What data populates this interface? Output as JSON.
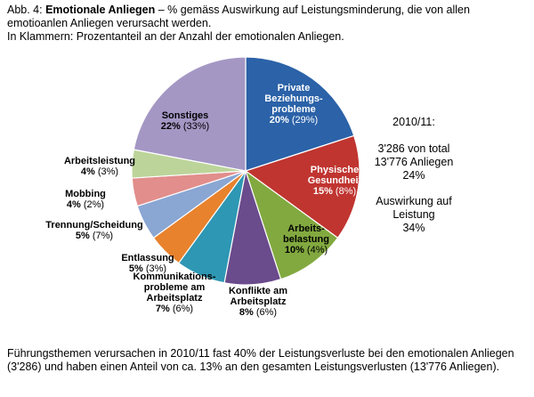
{
  "caption": {
    "prefix": "Abb. 4: ",
    "title_bold": "Emotionale Anliegen",
    "rest_line1": " – % gemäss Auswirkung auf Leistungsminderung, die von allen",
    "line2": "emotioanlen Anliegen verursacht werden.",
    "line3": "In Klammern: Prozentanteil an der Anzahl der emotionalen Anliegen."
  },
  "side_note": {
    "period": "2010/11:",
    "count_line1": "3'286 von total",
    "count_line2": "13'776 Anliegen",
    "count_pct": "24%",
    "impact_line1": "Auswirkung auf",
    "impact_line2": "Leistung",
    "impact_pct": "34%"
  },
  "footnote": {
    "line1": "Führungsthemen verursachen in 2010/11 fast 40% der Leistungsverluste bei den emotionalen Anliegen",
    "line2": "(3'286) und haben einen Anteil von ca. 13% an den gesamten Leistungsverlusten (13'776 Anliegen)."
  },
  "chart_data": {
    "type": "pie",
    "start_angle_deg": 0,
    "direction": "clockwise",
    "slices": [
      {
        "name_lines": [
          "Private",
          "Beziehungs-",
          "probleme"
        ],
        "value": 20,
        "value_label": "20%",
        "count_label": "(29%)",
        "color": "#2b62a8"
      },
      {
        "name_lines": [
          "Physische",
          "Gesundheit"
        ],
        "value": 15,
        "value_label": "15%",
        "count_label": "(8%)",
        "color": "#c03530"
      },
      {
        "name_lines": [
          "Arbeits-",
          "belastung"
        ],
        "value": 10,
        "value_label": "10%",
        "count_label": "(4%)",
        "color": "#82a93f"
      },
      {
        "name_lines": [
          "Konflikte am",
          "Arbeitsplatz"
        ],
        "value": 8,
        "value_label": "8%",
        "count_label": "(6%)",
        "color": "#6a4b8c"
      },
      {
        "name_lines": [
          "Kommunikations-",
          "probleme am",
          "Arbeitsplatz"
        ],
        "value": 7,
        "value_label": "7%",
        "count_label": "(6%)",
        "color": "#2e97b3"
      },
      {
        "name_lines": [
          "Entlassung"
        ],
        "value": 5,
        "value_label": "5%",
        "count_label": "(3%)",
        "color": "#e8822d"
      },
      {
        "name_lines": [
          "Trennung/Scheidung"
        ],
        "value": 5,
        "value_label": "5%",
        "count_label": "(7%)",
        "color": "#8aa6d3"
      },
      {
        "name_lines": [
          "Mobbing"
        ],
        "value": 4,
        "value_label": "4%",
        "count_label": "(2%)",
        "color": "#e18e8c"
      },
      {
        "name_lines": [
          "Arbeitsleistung"
        ],
        "value": 4,
        "value_label": "4%",
        "count_label": "(3%)",
        "color": "#bcd49a"
      },
      {
        "name_lines": [
          "Sonstiges"
        ],
        "value": 22,
        "value_label": "22%",
        "count_label": "(33%)",
        "color": "#a497c4"
      }
    ]
  }
}
